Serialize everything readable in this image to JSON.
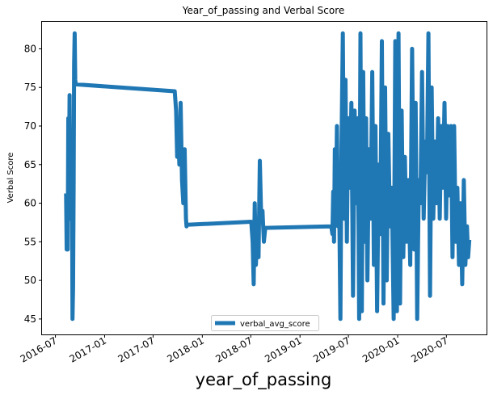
{
  "chart_data": {
    "type": "line",
    "title": "Year_of_passing and Verbal Score",
    "xlabel": "year_of_passing",
    "ylabel": "Verbal Score",
    "x_ticks": [
      "2016-07",
      "2017-01",
      "2017-07",
      "2018-01",
      "2018-07",
      "2019-01",
      "2019-07",
      "2020-01",
      "2020-07"
    ],
    "y_ticks": [
      45,
      50,
      55,
      60,
      65,
      70,
      75,
      80
    ],
    "xlim": [
      "2016-05-12",
      "2020-11-28"
    ],
    "ylim": [
      43,
      83.5
    ],
    "grid": false,
    "legend": "lower-center",
    "series_color": "#1f77b4",
    "series": [
      {
        "name": "verbal_avg_score",
        "points": [
          [
            "2016-08-10",
            61
          ],
          [
            "2016-08-12",
            54
          ],
          [
            "2016-08-14",
            58
          ],
          [
            "2016-08-16",
            54
          ],
          [
            "2016-08-18",
            71
          ],
          [
            "2016-08-20",
            60
          ],
          [
            "2016-08-23",
            74
          ],
          [
            "2016-08-26",
            58
          ],
          [
            "2016-08-29",
            68
          ],
          [
            "2016-09-01",
            63
          ],
          [
            "2016-09-03",
            45
          ],
          [
            "2016-09-05",
            49
          ],
          [
            "2016-09-07",
            62
          ],
          [
            "2016-09-09",
            78
          ],
          [
            "2016-09-11",
            82
          ],
          [
            "2016-09-13",
            76
          ],
          [
            "2016-09-15",
            75.4
          ],
          [
            "2017-09-20",
            74.5
          ],
          [
            "2017-09-25",
            72
          ],
          [
            "2017-09-29",
            66
          ],
          [
            "2017-10-03",
            70
          ],
          [
            "2017-10-07",
            65
          ],
          [
            "2017-10-12",
            73
          ],
          [
            "2017-10-17",
            63
          ],
          [
            "2017-10-22",
            60
          ],
          [
            "2017-10-27",
            67
          ],
          [
            "2017-11-01",
            58
          ],
          [
            "2017-11-03",
            57
          ],
          [
            "2017-11-05",
            57.2
          ],
          [
            "2018-07-03",
            57.6
          ],
          [
            "2018-07-08",
            55
          ],
          [
            "2018-07-12",
            49.5
          ],
          [
            "2018-07-16",
            60
          ],
          [
            "2018-07-20",
            52
          ],
          [
            "2018-07-25",
            56
          ],
          [
            "2018-07-30",
            53
          ],
          [
            "2018-08-04",
            65.5
          ],
          [
            "2018-08-09",
            58
          ],
          [
            "2018-08-14",
            59
          ],
          [
            "2018-08-19",
            55
          ],
          [
            "2018-08-24",
            56.8
          ],
          [
            "2019-04-28",
            57
          ],
          [
            "2019-05-02",
            56
          ],
          [
            "2019-05-05",
            61.5
          ],
          [
            "2019-05-08",
            55
          ],
          [
            "2019-05-11",
            67
          ],
          [
            "2019-05-15",
            58
          ],
          [
            "2019-05-19",
            70
          ],
          [
            "2019-05-23",
            57
          ],
          [
            "2019-05-27",
            62
          ],
          [
            "2019-06-01",
            45
          ],
          [
            "2019-06-05",
            67
          ],
          [
            "2019-06-10",
            82
          ],
          [
            "2019-06-15",
            58
          ],
          [
            "2019-06-20",
            76
          ],
          [
            "2019-06-25",
            55
          ],
          [
            "2019-06-30",
            71
          ],
          [
            "2019-07-06",
            62
          ],
          [
            "2019-07-12",
            73
          ],
          [
            "2019-07-18",
            48
          ],
          [
            "2019-07-24",
            72
          ],
          [
            "2019-07-30",
            60
          ],
          [
            "2019-08-05",
            71
          ],
          [
            "2019-08-10",
            45
          ],
          [
            "2019-08-15",
            82
          ],
          [
            "2019-08-20",
            46
          ],
          [
            "2019-08-25",
            77
          ],
          [
            "2019-08-30",
            55
          ],
          [
            "2019-09-05",
            71
          ],
          [
            "2019-09-10",
            50
          ],
          [
            "2019-09-16",
            67
          ],
          [
            "2019-09-22",
            58
          ],
          [
            "2019-09-28",
            77
          ],
          [
            "2019-10-04",
            52
          ],
          [
            "2019-10-10",
            70
          ],
          [
            "2019-10-16",
            46
          ],
          [
            "2019-10-22",
            65
          ],
          [
            "2019-10-28",
            56
          ],
          [
            "2019-11-03",
            81
          ],
          [
            "2019-11-09",
            47
          ],
          [
            "2019-11-15",
            75
          ],
          [
            "2019-11-21",
            50
          ],
          [
            "2019-11-27",
            69
          ],
          [
            "2019-12-03",
            57
          ],
          [
            "2019-12-10",
            62
          ],
          [
            "2019-12-17",
            45
          ],
          [
            "2019-12-23",
            81
          ],
          [
            "2019-12-29",
            46
          ],
          [
            "2020-01-04",
            82
          ],
          [
            "2020-01-10",
            47
          ],
          [
            "2020-01-16",
            72
          ],
          [
            "2020-01-22",
            53
          ],
          [
            "2020-01-28",
            66
          ],
          [
            "2020-02-03",
            55
          ],
          [
            "2020-02-10",
            63
          ],
          [
            "2020-02-17",
            52
          ],
          [
            "2020-02-24",
            80
          ],
          [
            "2020-03-02",
            54
          ],
          [
            "2020-03-08",
            73
          ],
          [
            "2020-03-14",
            45
          ],
          [
            "2020-03-20",
            63
          ],
          [
            "2020-03-26",
            60
          ],
          [
            "2020-04-01",
            77
          ],
          [
            "2020-04-07",
            58
          ],
          [
            "2020-04-13",
            68
          ],
          [
            "2020-04-19",
            64
          ],
          [
            "2020-04-25",
            82
          ],
          [
            "2020-05-01",
            48
          ],
          [
            "2020-05-07",
            75
          ],
          [
            "2020-05-13",
            58
          ],
          [
            "2020-05-19",
            68
          ],
          [
            "2020-05-25",
            60
          ],
          [
            "2020-05-31",
            71
          ],
          [
            "2020-06-06",
            58
          ],
          [
            "2020-06-12",
            70
          ],
          [
            "2020-06-18",
            62
          ],
          [
            "2020-06-24",
            73
          ],
          [
            "2020-06-30",
            58
          ],
          [
            "2020-07-06",
            70
          ],
          [
            "2020-07-12",
            61
          ],
          [
            "2020-07-18",
            70
          ],
          [
            "2020-07-24",
            53
          ],
          [
            "2020-07-30",
            70
          ],
          [
            "2020-08-05",
            55
          ],
          [
            "2020-08-11",
            62
          ],
          [
            "2020-08-17",
            52
          ],
          [
            "2020-08-23",
            60
          ],
          [
            "2020-08-29",
            49.5
          ],
          [
            "2020-09-04",
            63
          ],
          [
            "2020-09-10",
            52
          ],
          [
            "2020-09-16",
            57
          ],
          [
            "2020-09-20",
            53
          ],
          [
            "2020-09-24",
            55
          ]
        ]
      }
    ]
  }
}
